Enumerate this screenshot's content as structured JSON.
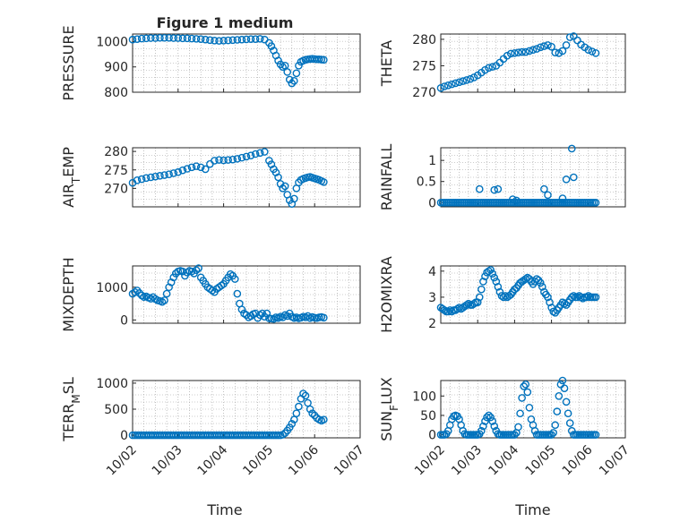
{
  "figure": {
    "title": "Figure 1 medium",
    "xlabel": "Time",
    "colors": {
      "marker": "#0072BD",
      "axis": "#262626",
      "grid": "#9a9a9a"
    }
  },
  "chart_data": [
    {
      "type": "scatter",
      "ylabel": "PRESSURE",
      "xticks": [
        "10/02",
        "10/03",
        "10/04",
        "10/05",
        "10/06",
        "10/07"
      ],
      "xlim": [
        0,
        5
      ],
      "ylim": [
        800,
        1030
      ],
      "yticks": [
        800,
        900,
        1000
      ],
      "grid": true,
      "show_xticklabels": false,
      "x": [
        0.0,
        0.1,
        0.2,
        0.3,
        0.4,
        0.5,
        0.6,
        0.7,
        0.8,
        0.9,
        1.0,
        1.1,
        1.2,
        1.3,
        1.4,
        1.5,
        1.6,
        1.7,
        1.8,
        1.9,
        2.0,
        2.1,
        2.2,
        2.3,
        2.4,
        2.5,
        2.6,
        2.7,
        2.8,
        2.9,
        3.0,
        3.05,
        3.1,
        3.15,
        3.2,
        3.25,
        3.3,
        3.35,
        3.4,
        3.45,
        3.5,
        3.55,
        3.6,
        3.65,
        3.7,
        3.75,
        3.8,
        3.85,
        3.9,
        3.95,
        4.0,
        4.05,
        4.1,
        4.15,
        4.2
      ],
      "y": [
        1008,
        1010,
        1012,
        1013,
        1014,
        1014,
        1015,
        1015,
        1015,
        1014,
        1014,
        1013,
        1013,
        1012,
        1011,
        1010,
        1008,
        1006,
        1004,
        1003,
        1004,
        1005,
        1006,
        1007,
        1008,
        1009,
        1010,
        1010,
        1011,
        1008,
        995,
        982,
        965,
        945,
        925,
        910,
        900,
        905,
        880,
        850,
        835,
        845,
        875,
        905,
        920,
        925,
        928,
        930,
        931,
        932,
        931,
        930,
        930,
        929,
        928
      ]
    },
    {
      "type": "scatter",
      "ylabel": "THETA",
      "xticks": [
        "10/02",
        "10/03",
        "10/04",
        "10/05",
        "10/06",
        "10/07"
      ],
      "xlim": [
        0,
        5
      ],
      "ylim": [
        270,
        281
      ],
      "yticks": [
        270,
        275,
        280
      ],
      "grid": true,
      "show_xticklabels": false,
      "x": [
        0.0,
        0.1,
        0.2,
        0.3,
        0.4,
        0.5,
        0.6,
        0.7,
        0.8,
        0.9,
        1.0,
        1.1,
        1.2,
        1.3,
        1.4,
        1.5,
        1.6,
        1.7,
        1.8,
        1.9,
        2.0,
        2.1,
        2.2,
        2.3,
        2.4,
        2.5,
        2.6,
        2.7,
        2.8,
        2.9,
        3.0,
        3.1,
        3.2,
        3.3,
        3.4,
        3.5,
        3.6,
        3.7,
        3.8,
        3.9,
        4.0,
        4.1,
        4.2
      ],
      "y": [
        270.8,
        271.1,
        271.3,
        271.5,
        271.7,
        271.9,
        272.1,
        272.3,
        272.5,
        272.8,
        273.2,
        273.7,
        274.2,
        274.6,
        274.8,
        275.0,
        275.6,
        276.3,
        276.9,
        277.3,
        277.4,
        277.5,
        277.6,
        277.6,
        277.8,
        278.0,
        278.2,
        278.5,
        278.7,
        278.9,
        278.6,
        277.5,
        277.4,
        277.8,
        278.9,
        280.4,
        280.6,
        279.8,
        279.0,
        278.5,
        278.0,
        277.7,
        277.4
      ]
    },
    {
      "type": "scatter",
      "ylabel": "AIR_TEMP",
      "xticks": [
        "10/02",
        "10/03",
        "10/04",
        "10/05",
        "10/06",
        "10/07"
      ],
      "xlim": [
        0,
        5
      ],
      "ylim": [
        265,
        281
      ],
      "yticks": [
        270,
        275,
        280
      ],
      "grid": true,
      "show_xticklabels": false,
      "x": [
        0.0,
        0.1,
        0.2,
        0.3,
        0.4,
        0.5,
        0.6,
        0.7,
        0.8,
        0.9,
        1.0,
        1.1,
        1.2,
        1.3,
        1.4,
        1.5,
        1.6,
        1.7,
        1.8,
        1.9,
        2.0,
        2.1,
        2.2,
        2.3,
        2.4,
        2.5,
        2.6,
        2.7,
        2.8,
        2.9,
        3.0,
        3.05,
        3.1,
        3.15,
        3.2,
        3.25,
        3.3,
        3.35,
        3.4,
        3.45,
        3.5,
        3.55,
        3.6,
        3.65,
        3.7,
        3.75,
        3.8,
        3.85,
        3.9,
        3.95,
        4.0,
        4.05,
        4.1,
        4.15,
        4.2
      ],
      "y": [
        271.5,
        272.2,
        272.5,
        272.8,
        273.0,
        273.2,
        273.4,
        273.6,
        273.8,
        274.1,
        274.4,
        274.9,
        275.3,
        275.7,
        276.0,
        275.7,
        275.2,
        276.6,
        277.5,
        277.7,
        277.6,
        277.7,
        277.8,
        278.0,
        278.3,
        278.6,
        278.9,
        279.3,
        279.6,
        279.9,
        277.5,
        276.5,
        275.2,
        274.3,
        273.0,
        271.2,
        270.0,
        270.6,
        268.3,
        266.8,
        265.8,
        267.2,
        270.0,
        271.6,
        272.3,
        272.6,
        272.8,
        273.0,
        273.1,
        272.9,
        272.7,
        272.5,
        272.3,
        272.0,
        271.7
      ]
    },
    {
      "type": "scatter",
      "ylabel": "RAINFALL",
      "xticks": [
        "10/02",
        "10/03",
        "10/04",
        "10/05",
        "10/06",
        "10/07"
      ],
      "xlim": [
        0,
        5
      ],
      "ylim": [
        -0.1,
        1.3
      ],
      "yticks": [
        0,
        0.5,
        1
      ],
      "grid": true,
      "show_xticklabels": false,
      "x": [
        0.0,
        0.05,
        0.1,
        0.15,
        0.2,
        0.25,
        0.3,
        0.35,
        0.4,
        0.45,
        0.5,
        0.55,
        0.6,
        0.65,
        0.7,
        0.75,
        0.8,
        0.85,
        0.9,
        0.95,
        1.0,
        1.05,
        1.1,
        1.15,
        1.2,
        1.25,
        1.3,
        1.35,
        1.4,
        1.45,
        1.5,
        1.55,
        1.6,
        1.65,
        1.7,
        1.75,
        1.8,
        1.85,
        1.9,
        1.95,
        2.0,
        2.05,
        2.1,
        2.15,
        2.2,
        2.25,
        2.3,
        2.35,
        2.4,
        2.45,
        2.5,
        2.55,
        2.6,
        2.65,
        2.7,
        2.75,
        2.8,
        2.85,
        2.9,
        2.95,
        3.0,
        3.05,
        3.1,
        3.15,
        3.2,
        3.25,
        3.3,
        3.35,
        3.4,
        3.45,
        3.5,
        3.55,
        3.6,
        3.65,
        3.7,
        3.75,
        3.8,
        3.85,
        3.9,
        3.95,
        4.0,
        4.05,
        4.1,
        4.15,
        4.2,
        1.05,
        1.45,
        1.55,
        1.95,
        2.05,
        2.8,
        2.9,
        3.3,
        3.4,
        3.55,
        3.6
      ],
      "y": [
        0,
        0,
        0,
        0,
        0,
        0,
        0,
        0,
        0,
        0,
        0,
        0,
        0,
        0,
        0,
        0,
        0,
        0,
        0,
        0,
        0,
        0,
        0,
        0,
        0,
        0,
        0,
        0,
        0,
        0,
        0,
        0,
        0,
        0,
        0,
        0,
        0,
        0,
        0,
        0,
        0,
        0,
        0,
        0,
        0,
        0,
        0,
        0,
        0,
        0,
        0,
        0,
        0,
        0,
        0,
        0,
        0,
        0,
        0,
        0,
        0,
        0,
        0,
        0,
        0,
        0,
        0,
        0,
        0,
        0,
        0,
        0,
        0,
        0,
        0,
        0,
        0,
        0,
        0,
        0,
        0,
        0,
        0,
        0,
        0,
        0.32,
        0.3,
        0.32,
        0.08,
        0.05,
        0.32,
        0.18,
        0.1,
        0.55,
        1.28,
        0.6
      ]
    },
    {
      "type": "scatter",
      "ylabel": "MIXDEPTH",
      "xticks": [
        "10/02",
        "10/03",
        "10/04",
        "10/05",
        "10/06",
        "10/07"
      ],
      "xlim": [
        0,
        5
      ],
      "ylim": [
        -100,
        1650
      ],
      "yticks": [
        0,
        1000
      ],
      "grid": true,
      "show_xticklabels": false,
      "x": [
        0.0,
        0.05,
        0.1,
        0.15,
        0.2,
        0.25,
        0.3,
        0.35,
        0.4,
        0.45,
        0.5,
        0.55,
        0.6,
        0.65,
        0.7,
        0.75,
        0.8,
        0.85,
        0.9,
        0.95,
        1.0,
        1.05,
        1.1,
        1.15,
        1.2,
        1.25,
        1.3,
        1.35,
        1.4,
        1.45,
        1.5,
        1.55,
        1.6,
        1.65,
        1.7,
        1.75,
        1.8,
        1.85,
        1.9,
        1.95,
        2.0,
        2.05,
        2.1,
        2.15,
        2.2,
        2.25,
        2.3,
        2.35,
        2.4,
        2.45,
        2.5,
        2.55,
        2.6,
        2.65,
        2.7,
        2.75,
        2.8,
        2.85,
        2.9,
        2.95,
        3.0,
        3.05,
        3.1,
        3.15,
        3.2,
        3.25,
        3.3,
        3.35,
        3.4,
        3.45,
        3.5,
        3.55,
        3.6,
        3.65,
        3.7,
        3.75,
        3.8,
        3.85,
        3.9,
        3.95,
        4.0,
        4.05,
        4.1,
        4.15,
        4.2
      ],
      "y": [
        800,
        850,
        900,
        820,
        750,
        700,
        720,
        680,
        650,
        700,
        640,
        600,
        580,
        550,
        600,
        800,
        1000,
        1150,
        1300,
        1420,
        1480,
        1500,
        1480,
        1350,
        1450,
        1500,
        1480,
        1420,
        1520,
        1580,
        1300,
        1200,
        1100,
        1000,
        950,
        900,
        850,
        950,
        1000,
        1050,
        1100,
        1200,
        1300,
        1400,
        1350,
        1250,
        800,
        500,
        320,
        200,
        150,
        80,
        120,
        180,
        200,
        60,
        150,
        200,
        100,
        200,
        50,
        40,
        30,
        80,
        60,
        100,
        80,
        150,
        120,
        200,
        100,
        60,
        80,
        50,
        70,
        100,
        80,
        120,
        60,
        90,
        70,
        60,
        80,
        90,
        70
      ]
    },
    {
      "type": "scatter",
      "ylabel": "H2OMIXRA",
      "xticks": [
        "10/02",
        "10/03",
        "10/04",
        "10/05",
        "10/06",
        "10/07"
      ],
      "xlim": [
        0,
        5
      ],
      "ylim": [
        2,
        4.2
      ],
      "yticks": [
        2,
        3,
        4
      ],
      "grid": true,
      "show_xticklabels": false,
      "x": [
        0.0,
        0.05,
        0.1,
        0.15,
        0.2,
        0.25,
        0.3,
        0.35,
        0.4,
        0.45,
        0.5,
        0.55,
        0.6,
        0.65,
        0.7,
        0.75,
        0.8,
        0.85,
        0.9,
        0.95,
        1.0,
        1.05,
        1.1,
        1.15,
        1.2,
        1.25,
        1.3,
        1.35,
        1.4,
        1.45,
        1.5,
        1.55,
        1.6,
        1.65,
        1.7,
        1.75,
        1.8,
        1.85,
        1.9,
        1.95,
        2.0,
        2.05,
        2.1,
        2.15,
        2.2,
        2.25,
        2.3,
        2.35,
        2.4,
        2.45,
        2.5,
        2.55,
        2.6,
        2.65,
        2.7,
        2.75,
        2.8,
        2.85,
        2.9,
        2.95,
        3.0,
        3.05,
        3.1,
        3.15,
        3.2,
        3.25,
        3.3,
        3.35,
        3.4,
        3.45,
        3.5,
        3.55,
        3.6,
        3.65,
        3.7,
        3.75,
        3.8,
        3.85,
        3.9,
        3.95,
        4.0,
        4.05,
        4.1,
        4.15,
        4.2
      ],
      "y": [
        2.6,
        2.55,
        2.5,
        2.45,
        2.45,
        2.5,
        2.45,
        2.5,
        2.5,
        2.55,
        2.6,
        2.55,
        2.6,
        2.65,
        2.7,
        2.75,
        2.7,
        2.7,
        2.75,
        2.8,
        2.8,
        3.0,
        3.3,
        3.6,
        3.8,
        3.95,
        4.0,
        4.05,
        3.9,
        3.75,
        3.6,
        3.4,
        3.2,
        3.05,
        3.0,
        3.05,
        3.0,
        3.05,
        3.1,
        3.2,
        3.3,
        3.35,
        3.45,
        3.55,
        3.6,
        3.65,
        3.7,
        3.75,
        3.7,
        3.6,
        3.5,
        3.6,
        3.7,
        3.65,
        3.55,
        3.4,
        3.2,
        3.1,
        3.0,
        2.8,
        2.6,
        2.45,
        2.4,
        2.5,
        2.6,
        2.7,
        2.8,
        2.75,
        2.7,
        2.8,
        2.9,
        3.0,
        3.05,
        3.0,
        3.0,
        3.05,
        3.0,
        2.95,
        3.0,
        3.0,
        3.05,
        3.0,
        3.0,
        3.0,
        3.0
      ]
    },
    {
      "type": "scatter",
      "ylabel": "TERR_MSL",
      "xticks": [
        "10/02",
        "10/03",
        "10/04",
        "10/05",
        "10/06",
        "10/07"
      ],
      "xlim": [
        0,
        5
      ],
      "ylim": [
        -50,
        1050
      ],
      "yticks": [
        0,
        500,
        1000
      ],
      "grid": true,
      "show_xticklabels": true,
      "x": [
        0.0,
        0.05,
        0.1,
        0.15,
        0.2,
        0.25,
        0.3,
        0.35,
        0.4,
        0.45,
        0.5,
        0.55,
        0.6,
        0.65,
        0.7,
        0.75,
        0.8,
        0.85,
        0.9,
        0.95,
        1.0,
        1.05,
        1.1,
        1.15,
        1.2,
        1.25,
        1.3,
        1.35,
        1.4,
        1.45,
        1.5,
        1.55,
        1.6,
        1.65,
        1.7,
        1.75,
        1.8,
        1.85,
        1.9,
        1.95,
        2.0,
        2.05,
        2.1,
        2.15,
        2.2,
        2.25,
        2.3,
        2.35,
        2.4,
        2.45,
        2.5,
        2.55,
        2.6,
        2.65,
        2.7,
        2.75,
        2.8,
        2.85,
        2.9,
        2.95,
        3.0,
        3.05,
        3.1,
        3.15,
        3.2,
        3.25,
        3.3,
        3.35,
        3.4,
        3.45,
        3.5,
        3.55,
        3.6,
        3.65,
        3.7,
        3.75,
        3.8,
        3.85,
        3.9,
        3.95,
        4.0,
        4.05,
        4.1,
        4.15,
        4.2
      ],
      "y": [
        0,
        0,
        0,
        0,
        0,
        0,
        0,
        0,
        0,
        0,
        0,
        0,
        0,
        0,
        0,
        0,
        0,
        0,
        0,
        0,
        0,
        0,
        0,
        0,
        0,
        0,
        0,
        0,
        0,
        0,
        0,
        0,
        0,
        0,
        0,
        0,
        0,
        0,
        0,
        0,
        0,
        0,
        0,
        0,
        0,
        0,
        0,
        0,
        0,
        0,
        0,
        0,
        0,
        0,
        0,
        0,
        0,
        0,
        0,
        0,
        0,
        0,
        0,
        0,
        0,
        0,
        10,
        40,
        90,
        150,
        220,
        300,
        420,
        550,
        700,
        800,
        760,
        620,
        500,
        420,
        380,
        330,
        300,
        280,
        300
      ]
    },
    {
      "type": "scatter",
      "ylabel": "SUN_FLUX",
      "xticks": [
        "10/02",
        "10/03",
        "10/04",
        "10/05",
        "10/06",
        "10/07"
      ],
      "xlim": [
        0,
        5
      ],
      "ylim": [
        -8,
        140
      ],
      "yticks": [
        0,
        50,
        100
      ],
      "grid": true,
      "show_xticklabels": true,
      "x": [
        0.0,
        0.05,
        0.1,
        0.15,
        0.2,
        0.25,
        0.3,
        0.35,
        0.4,
        0.45,
        0.5,
        0.55,
        0.6,
        0.65,
        0.7,
        0.75,
        0.8,
        0.85,
        0.9,
        0.95,
        1.0,
        1.05,
        1.1,
        1.15,
        1.2,
        1.25,
        1.3,
        1.35,
        1.4,
        1.45,
        1.5,
        1.55,
        1.6,
        1.65,
        1.7,
        1.75,
        1.8,
        1.85,
        1.9,
        1.95,
        2.0,
        2.05,
        2.1,
        2.15,
        2.2,
        2.25,
        2.3,
        2.35,
        2.4,
        2.45,
        2.5,
        2.55,
        2.6,
        2.65,
        2.7,
        2.75,
        2.8,
        2.85,
        2.9,
        2.95,
        3.0,
        3.05,
        3.1,
        3.15,
        3.2,
        3.25,
        3.3,
        3.35,
        3.4,
        3.45,
        3.5,
        3.55,
        3.6,
        3.65,
        3.7,
        3.75,
        3.8,
        3.85,
        3.9,
        3.95,
        4.0,
        4.05,
        4.1,
        4.15,
        4.2
      ],
      "y": [
        0,
        0,
        0,
        2,
        10,
        25,
        40,
        48,
        50,
        48,
        40,
        25,
        10,
        2,
        0,
        0,
        0,
        0,
        0,
        0,
        0,
        2,
        10,
        22,
        35,
        45,
        50,
        45,
        35,
        22,
        10,
        2,
        0,
        0,
        0,
        0,
        0,
        0,
        0,
        0,
        0,
        5,
        20,
        55,
        95,
        125,
        130,
        110,
        70,
        40,
        25,
        10,
        0,
        0,
        0,
        0,
        0,
        0,
        0,
        0,
        0,
        5,
        25,
        60,
        100,
        130,
        140,
        120,
        85,
        55,
        30,
        10,
        0,
        0,
        0,
        0,
        0,
        0,
        0,
        0,
        0,
        0,
        0,
        0,
        0
      ]
    }
  ]
}
